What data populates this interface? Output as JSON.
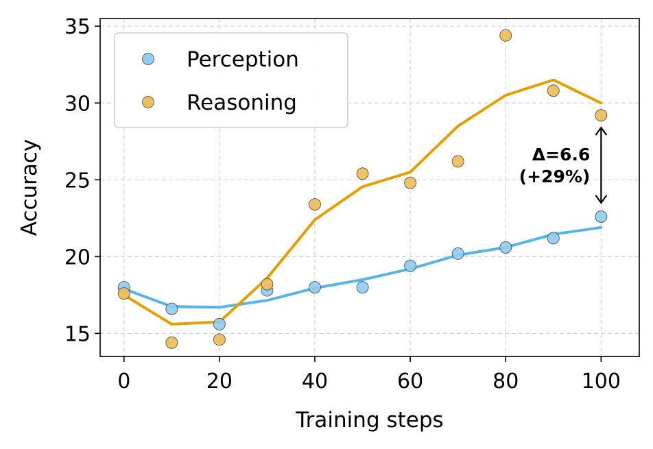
{
  "chart_data": {
    "type": "scatter",
    "xlabel": "Training steps",
    "ylabel": "Accuracy",
    "xlim": [
      -5,
      108
    ],
    "ylim": [
      13.5,
      35.5
    ],
    "xticks": [
      0,
      20,
      40,
      60,
      80,
      100
    ],
    "yticks": [
      15,
      20,
      25,
      30,
      35
    ],
    "xtick_labels": [
      "0",
      "20",
      "40",
      "60",
      "80",
      "100"
    ],
    "ytick_labels": [
      "15",
      "20",
      "25",
      "30",
      "35"
    ],
    "grid": true,
    "legend_position": "top-left",
    "series": [
      {
        "name": "Perception",
        "color": "#56b4e9",
        "point_color": "#8fcdf0",
        "x": [
          0,
          10,
          20,
          30,
          40,
          50,
          60,
          70,
          80,
          90,
          100
        ],
        "points": [
          18.0,
          16.6,
          15.6,
          17.8,
          18.0,
          18.0,
          19.4,
          20.2,
          20.6,
          21.2,
          22.6
        ],
        "trend": [
          17.9,
          16.75,
          16.7,
          17.15,
          17.95,
          18.5,
          19.2,
          20.1,
          20.6,
          21.45,
          21.9
        ]
      },
      {
        "name": "Reasoning",
        "color": "#e69f00",
        "point_color": "#efbd59",
        "x": [
          0,
          10,
          20,
          30,
          40,
          50,
          60,
          70,
          80,
          90,
          100
        ],
        "points": [
          17.6,
          14.4,
          14.6,
          18.2,
          23.4,
          25.4,
          24.8,
          26.2,
          34.4,
          30.8,
          29.2
        ],
        "trend": [
          17.5,
          15.6,
          15.75,
          18.6,
          22.4,
          24.55,
          25.5,
          28.5,
          30.5,
          31.5,
          30.0
        ]
      }
    ],
    "annotations": [
      {
        "text_line1": "Δ=6.6",
        "text_line2": "(+29%)",
        "x": 100,
        "y_from": 23.5,
        "y_to": 28.4
      }
    ]
  }
}
